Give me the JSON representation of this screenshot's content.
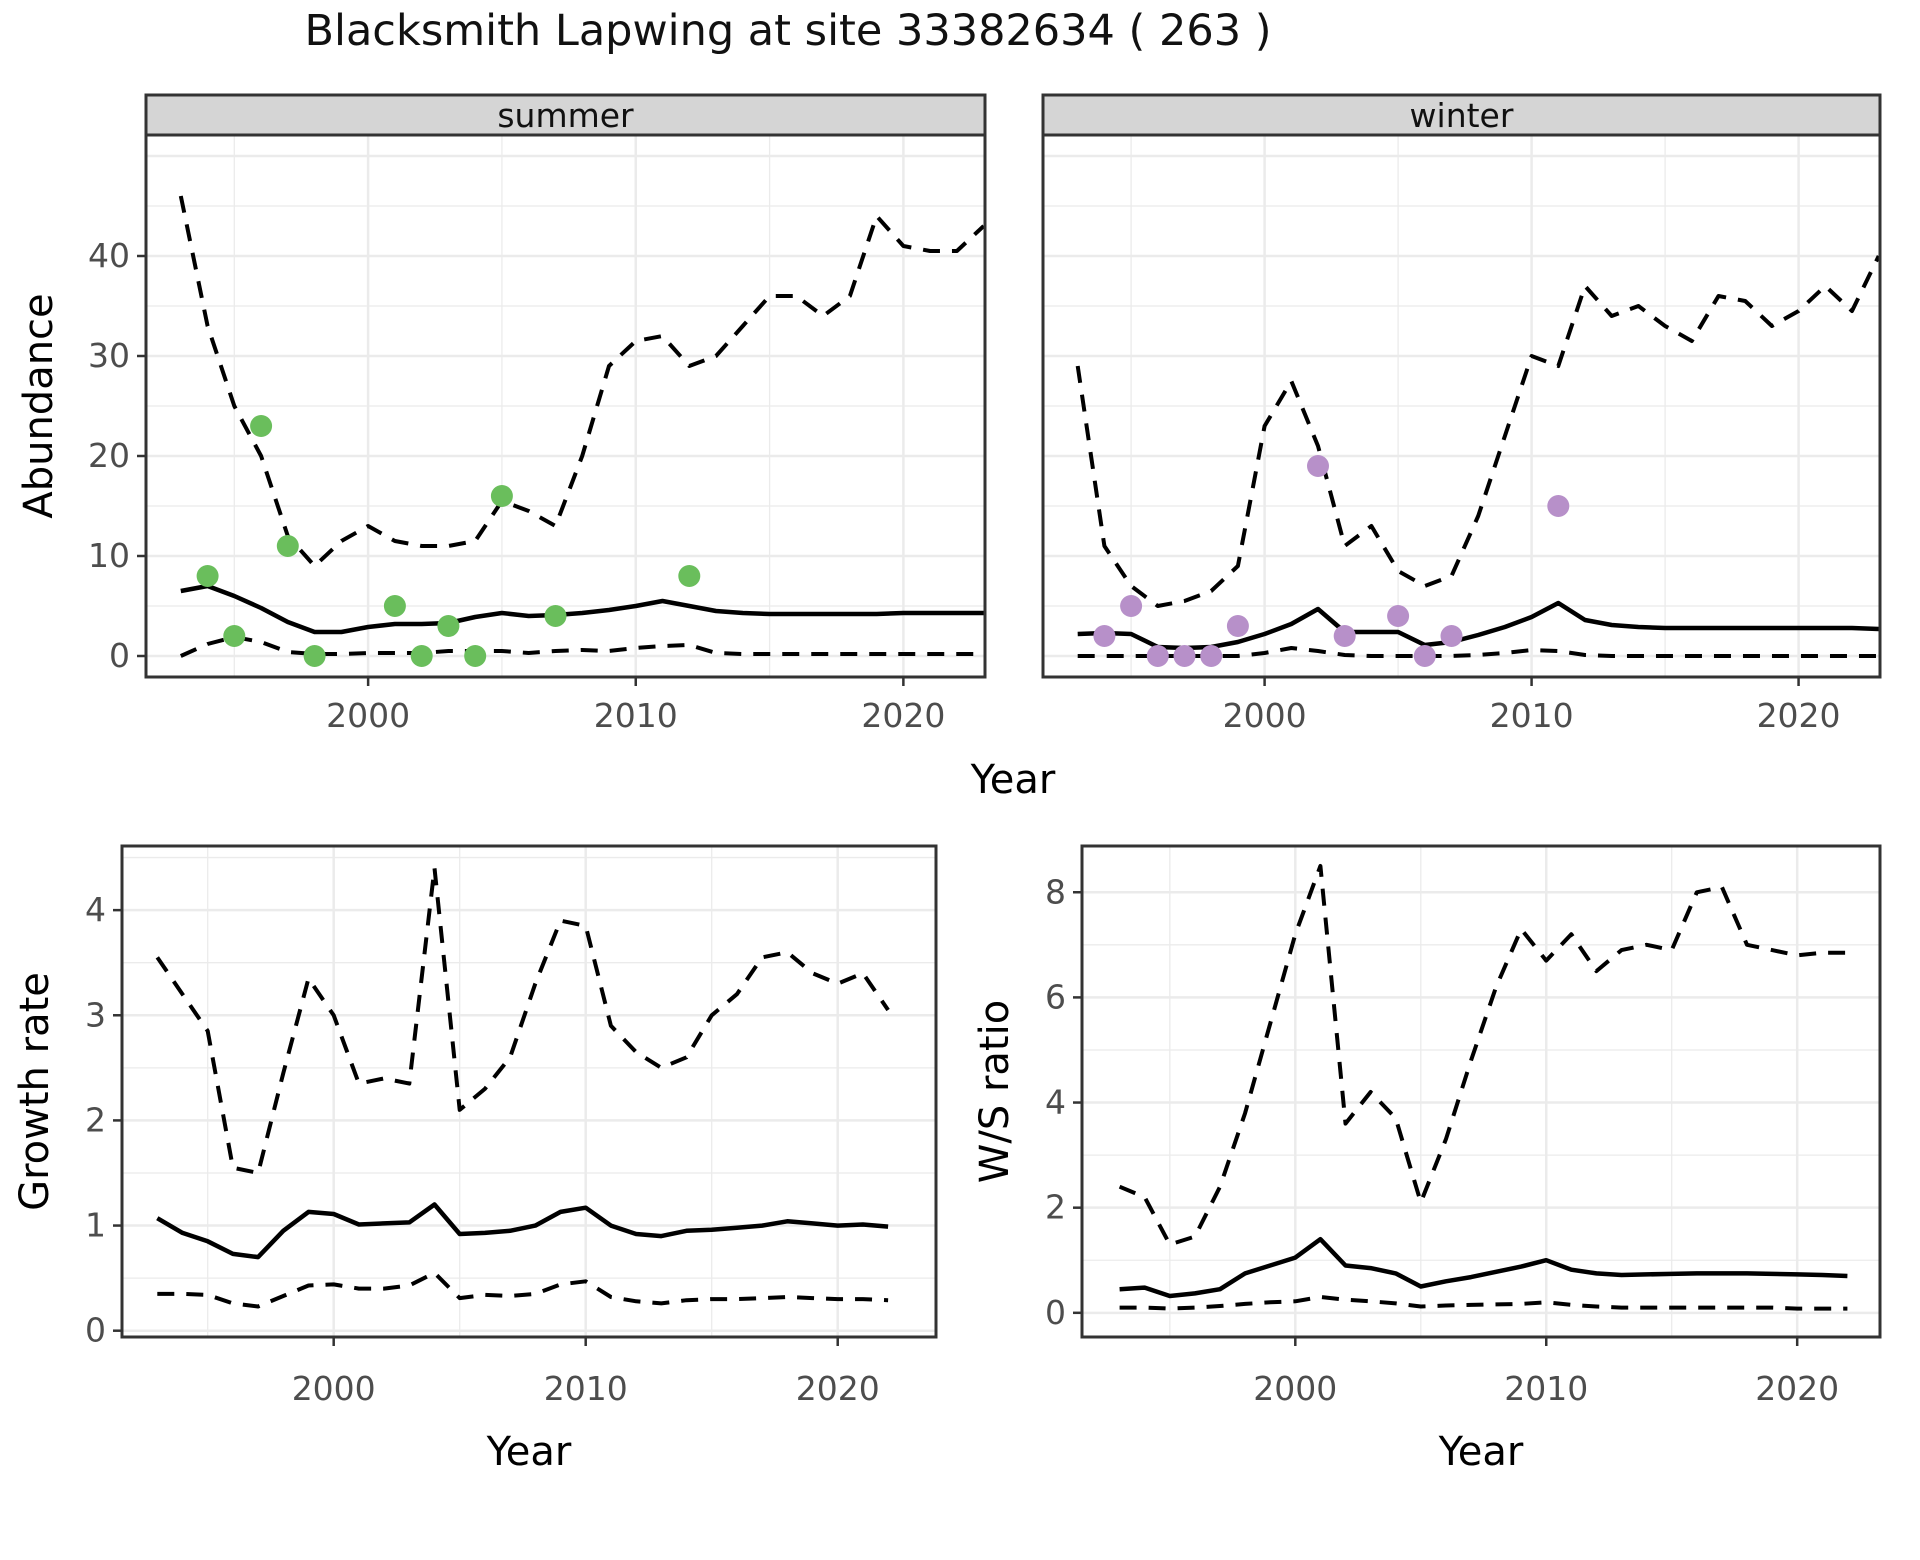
{
  "title": "Blacksmith Lapwing at site 33382634 ( 263 )",
  "colors": {
    "background": "#ffffff",
    "panel_border": "#333333",
    "gridline": "#ebebeb",
    "strip_background": "#d5d5d5",
    "axis_text": "#4d4d4d",
    "line": "#000000",
    "summer_points": "#6abe5c",
    "winter_points": "#b790c9"
  },
  "top_row_xlabel": "Year",
  "chart_data": [
    {
      "id": "abundance-summer",
      "type": "line",
      "facet_label": "summer",
      "ylabel": "Abundance",
      "xlabel": "Year",
      "legend": "none",
      "grid": "on",
      "x": [
        1993,
        1994,
        1995,
        1996,
        1997,
        1998,
        1999,
        2000,
        2001,
        2002,
        2003,
        2004,
        2005,
        2006,
        2007,
        2008,
        2009,
        2010,
        2011,
        2012,
        2013,
        2014,
        2015,
        2016,
        2017,
        2018,
        2019,
        2020,
        2021,
        2022,
        2023
      ],
      "series": [
        {
          "name": "ci_upper",
          "style": "dashed",
          "values": [
            46,
            33,
            25,
            20,
            12,
            9,
            11.5,
            13,
            11.5,
            11,
            11,
            11.5,
            15.5,
            14.5,
            13,
            20,
            29,
            31.5,
            32,
            29,
            30,
            33,
            36,
            36,
            34,
            36,
            44,
            41,
            40.5,
            40.5,
            43
          ]
        },
        {
          "name": "median",
          "style": "solid",
          "values": [
            6.5,
            7,
            6,
            4.8,
            3.4,
            2.4,
            2.4,
            2.9,
            3.2,
            3.2,
            3.3,
            3.9,
            4.3,
            4,
            4.1,
            4.3,
            4.6,
            5,
            5.5,
            5,
            4.5,
            4.3,
            4.2,
            4.2,
            4.2,
            4.2,
            4.2,
            4.3,
            4.3,
            4.3,
            4.3
          ]
        },
        {
          "name": "ci_lower",
          "style": "dashed",
          "values": [
            0,
            1.2,
            1.9,
            1.4,
            0.4,
            0.2,
            0.2,
            0.3,
            0.3,
            0.3,
            0.5,
            0.5,
            0.5,
            0.3,
            0.5,
            0.6,
            0.5,
            0.8,
            1,
            1.1,
            0.3,
            0.2,
            0.2,
            0.2,
            0.2,
            0.2,
            0.2,
            0.2,
            0.2,
            0.2,
            0.2
          ]
        }
      ],
      "points": {
        "name": "observed-counts",
        "color": "#6abe5c",
        "xy": [
          [
            1994,
            8
          ],
          [
            1995,
            2
          ],
          [
            1996,
            23
          ],
          [
            1997,
            11
          ],
          [
            1998,
            0
          ],
          [
            2001,
            5
          ],
          [
            2002,
            0
          ],
          [
            2003,
            3
          ],
          [
            2004,
            0
          ],
          [
            2005,
            16
          ],
          [
            2007,
            4
          ],
          [
            2012,
            8
          ]
        ]
      },
      "x_ticks": [
        2000,
        2010,
        2020
      ],
      "x_minor": [
        1995,
        2005,
        2015
      ],
      "y_ticks": [
        0,
        10,
        20,
        30,
        40,
        50
      ],
      "y_minor": [
        5,
        15,
        25,
        35,
        45
      ],
      "xlim": [
        1991.7,
        2023.05
      ],
      "ylim": [
        -2.1,
        52.1
      ],
      "show_y_labels": true,
      "y_label_max": 40
    },
    {
      "id": "abundance-winter",
      "type": "line",
      "facet_label": "winter",
      "ylabel": "Abundance",
      "xlabel": "Year",
      "legend": "none",
      "grid": "on",
      "x": [
        1993,
        1994,
        1995,
        1996,
        1997,
        1998,
        1999,
        2000,
        2001,
        2002,
        2003,
        2004,
        2005,
        2006,
        2007,
        2008,
        2009,
        2010,
        2011,
        2012,
        2013,
        2014,
        2015,
        2016,
        2017,
        2018,
        2019,
        2020,
        2021,
        2022,
        2023
      ],
      "series": [
        {
          "name": "ci_upper",
          "style": "dashed",
          "values": [
            29,
            11,
            7,
            5,
            5.5,
            6.5,
            9,
            23,
            27.5,
            21,
            11,
            13,
            8.5,
            7,
            8,
            14,
            22,
            30,
            29,
            37,
            34,
            35,
            33,
            31.5,
            36,
            35.5,
            33,
            34.5,
            37,
            34.5,
            40
          ]
        },
        {
          "name": "median",
          "style": "solid",
          "values": [
            2.2,
            2.3,
            2.2,
            0.9,
            0.8,
            0.9,
            1.4,
            2.2,
            3.2,
            4.7,
            2.4,
            2.4,
            2.4,
            1.1,
            1.4,
            2.1,
            2.9,
            3.9,
            5.3,
            3.6,
            3.1,
            2.9,
            2.8,
            2.8,
            2.8,
            2.8,
            2.8,
            2.8,
            2.8,
            2.8,
            2.7
          ]
        },
        {
          "name": "ci_lower",
          "style": "dashed",
          "values": [
            0,
            0,
            0,
            0,
            0,
            0,
            0,
            0.3,
            0.8,
            0.5,
            0.1,
            0,
            0,
            0,
            0,
            0.1,
            0.3,
            0.6,
            0.5,
            0.1,
            0,
            0,
            0,
            0,
            0,
            0,
            0,
            0,
            0,
            0,
            0
          ]
        }
      ],
      "points": {
        "name": "observed-counts",
        "color": "#b790c9",
        "xy": [
          [
            1994,
            2
          ],
          [
            1995,
            5
          ],
          [
            1996,
            0
          ],
          [
            1997,
            0
          ],
          [
            1998,
            0
          ],
          [
            1999,
            3
          ],
          [
            2002,
            19
          ],
          [
            2003,
            2
          ],
          [
            2005,
            4
          ],
          [
            2006,
            0
          ],
          [
            2007,
            2
          ],
          [
            2011,
            15
          ]
        ]
      },
      "x_ticks": [
        2000,
        2010,
        2020
      ],
      "x_minor": [
        1995,
        2005,
        2015
      ],
      "y_ticks": [
        0,
        10,
        20,
        30,
        40,
        50
      ],
      "y_minor": [
        5,
        15,
        25,
        35,
        45
      ],
      "xlim": [
        1991.7,
        2023.05
      ],
      "ylim": [
        -2.1,
        52.1
      ],
      "show_y_labels": false,
      "y_label_max": 40
    },
    {
      "id": "growth-rate",
      "type": "line",
      "facet_label": "",
      "ylabel": "Growth rate",
      "xlabel": "Year",
      "legend": "none",
      "grid": "on",
      "x": [
        1993,
        1994,
        1995,
        1996,
        1997,
        1998,
        1999,
        2000,
        2001,
        2002,
        2003,
        2004,
        2005,
        2006,
        2007,
        2008,
        2009,
        2010,
        2011,
        2012,
        2013,
        2014,
        2015,
        2016,
        2017,
        2018,
        2019,
        2020,
        2021,
        2022
      ],
      "series": [
        {
          "name": "ci_upper",
          "style": "dashed",
          "values": [
            3.55,
            3.2,
            2.85,
            1.55,
            1.5,
            2.45,
            3.35,
            3,
            2.35,
            2.4,
            2.35,
            4.4,
            2.1,
            2.3,
            2.6,
            3.3,
            3.9,
            3.85,
            2.9,
            2.65,
            2.5,
            2.6,
            3,
            3.2,
            3.55,
            3.6,
            3.4,
            3.3,
            3.4,
            3.05
          ]
        },
        {
          "name": "median",
          "style": "solid",
          "values": [
            1.07,
            0.93,
            0.85,
            0.73,
            0.7,
            0.95,
            1.13,
            1.11,
            1.01,
            1.02,
            1.03,
            1.2,
            0.92,
            0.93,
            0.95,
            1,
            1.13,
            1.17,
            1,
            0.92,
            0.9,
            0.95,
            0.96,
            0.98,
            1,
            1.04,
            1.02,
            1,
            1.01,
            0.99
          ]
        },
        {
          "name": "ci_lower",
          "style": "dashed",
          "values": [
            0.35,
            0.35,
            0.34,
            0.26,
            0.23,
            0.33,
            0.43,
            0.44,
            0.4,
            0.4,
            0.43,
            0.55,
            0.31,
            0.34,
            0.33,
            0.35,
            0.44,
            0.47,
            0.32,
            0.28,
            0.26,
            0.29,
            0.3,
            0.3,
            0.31,
            0.32,
            0.31,
            0.3,
            0.3,
            0.29
          ]
        }
      ],
      "points": null,
      "x_ticks": [
        2000,
        2010,
        2020
      ],
      "x_minor": [
        1995,
        2005,
        2015
      ],
      "y_ticks": [
        0,
        1,
        2,
        3,
        4
      ],
      "y_minor": [
        0.5,
        1.5,
        2.5,
        3.5,
        4.5
      ],
      "xlim": [
        1991.6,
        2023.9
      ],
      "ylim": [
        -0.06,
        4.61
      ],
      "show_y_labels": true,
      "y_label_max": 4
    },
    {
      "id": "ws-ratio",
      "type": "line",
      "facet_label": "",
      "ylabel": "W/S ratio",
      "xlabel": "Year",
      "legend": "none",
      "grid": "on",
      "x": [
        1993,
        1994,
        1995,
        1996,
        1997,
        1998,
        1999,
        2000,
        2001,
        2002,
        2003,
        2004,
        2005,
        2006,
        2007,
        2008,
        2009,
        2010,
        2011,
        2012,
        2013,
        2014,
        2015,
        2016,
        2017,
        2018,
        2019,
        2020,
        2021,
        2022
      ],
      "series": [
        {
          "name": "ci_upper",
          "style": "dashed",
          "values": [
            2.4,
            2.2,
            1.3,
            1.45,
            2.4,
            3.8,
            5.5,
            7.2,
            8.5,
            3.6,
            4.2,
            3.7,
            2.1,
            3.3,
            4.8,
            6.2,
            7.3,
            6.7,
            7.2,
            6.5,
            6.9,
            7,
            6.9,
            8,
            8.1,
            7,
            6.9,
            6.8,
            6.85,
            6.85
          ]
        },
        {
          "name": "median",
          "style": "solid",
          "values": [
            0.45,
            0.48,
            0.32,
            0.37,
            0.45,
            0.75,
            0.9,
            1.05,
            1.4,
            0.9,
            0.85,
            0.75,
            0.5,
            0.6,
            0.68,
            0.78,
            0.88,
            1,
            0.82,
            0.75,
            0.72,
            0.73,
            0.74,
            0.75,
            0.75,
            0.75,
            0.74,
            0.73,
            0.72,
            0.7
          ]
        },
        {
          "name": "ci_lower",
          "style": "dashed",
          "values": [
            0.1,
            0.1,
            0.08,
            0.1,
            0.13,
            0.17,
            0.2,
            0.22,
            0.3,
            0.25,
            0.22,
            0.18,
            0.12,
            0.14,
            0.15,
            0.16,
            0.17,
            0.2,
            0.15,
            0.12,
            0.1,
            0.1,
            0.1,
            0.1,
            0.1,
            0.1,
            0.1,
            0.08,
            0.08,
            0.08
          ]
        }
      ],
      "points": null,
      "x_ticks": [
        2000,
        2010,
        2020
      ],
      "x_minor": [
        1995,
        2005,
        2015
      ],
      "y_ticks": [
        0,
        2,
        4,
        6,
        8
      ],
      "y_minor": [
        1,
        3,
        5,
        7
      ],
      "xlim": [
        1991.5,
        2023.3
      ],
      "ylim": [
        -0.46,
        8.88
      ],
      "show_y_labels": true,
      "y_label_max": 8
    }
  ]
}
